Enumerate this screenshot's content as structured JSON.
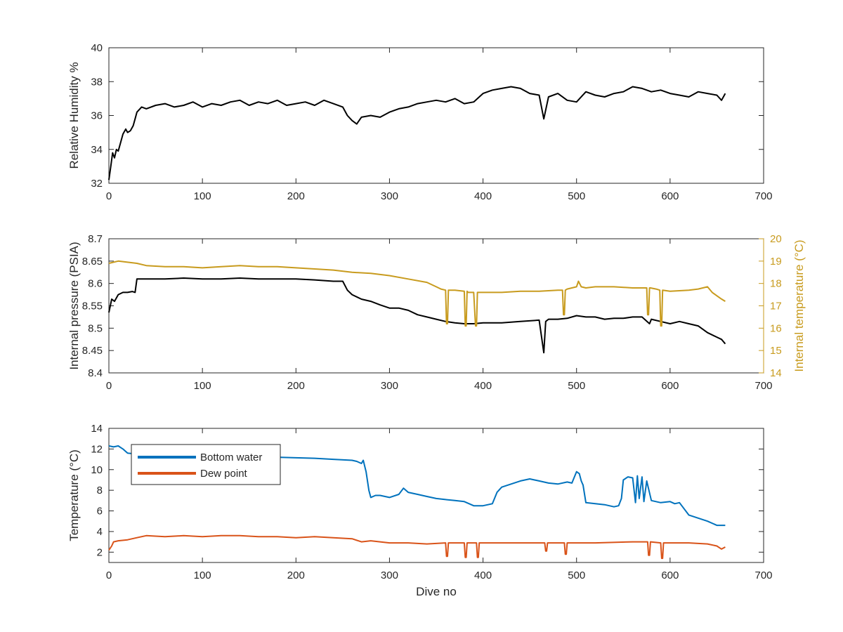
{
  "chart_data": [
    {
      "type": "line",
      "ylabel": "Relative Humidity %",
      "xlabel": "",
      "xlim": [
        0,
        700
      ],
      "ylim": [
        32,
        40
      ],
      "xticks": [
        "0",
        "100",
        "200",
        "300",
        "400",
        "500",
        "600",
        "700"
      ],
      "yticks": [
        "32",
        "34",
        "36",
        "38",
        "40"
      ],
      "grid": false,
      "series": [
        {
          "color": "#000000",
          "x": [
            0,
            2,
            4,
            6,
            8,
            10,
            12,
            15,
            18,
            20,
            23,
            26,
            28,
            30,
            35,
            40,
            50,
            60,
            70,
            80,
            90,
            100,
            110,
            120,
            130,
            140,
            150,
            160,
            170,
            180,
            190,
            200,
            210,
            220,
            230,
            240,
            250,
            255,
            260,
            265,
            270,
            280,
            290,
            300,
            310,
            320,
            330,
            340,
            350,
            360,
            370,
            380,
            390,
            400,
            410,
            420,
            430,
            440,
            450,
            460,
            465,
            470,
            480,
            490,
            500,
            510,
            520,
            530,
            540,
            550,
            560,
            570,
            580,
            590,
            600,
            610,
            620,
            630,
            640,
            650,
            655,
            659
          ],
          "y": [
            32.2,
            33.0,
            33.8,
            33.5,
            34.0,
            33.9,
            34.3,
            34.9,
            35.2,
            35.0,
            35.1,
            35.4,
            35.8,
            36.2,
            36.5,
            36.4,
            36.6,
            36.7,
            36.5,
            36.6,
            36.8,
            36.5,
            36.7,
            36.6,
            36.8,
            36.9,
            36.6,
            36.8,
            36.7,
            36.9,
            36.6,
            36.7,
            36.8,
            36.6,
            36.9,
            36.7,
            36.5,
            36.0,
            35.7,
            35.5,
            35.9,
            36.0,
            35.9,
            36.2,
            36.4,
            36.5,
            36.7,
            36.8,
            36.9,
            36.8,
            37.0,
            36.7,
            36.8,
            37.3,
            37.5,
            37.6,
            37.7,
            37.6,
            37.3,
            37.2,
            35.8,
            37.1,
            37.3,
            36.9,
            36.8,
            37.4,
            37.2,
            37.1,
            37.3,
            37.4,
            37.7,
            37.6,
            37.4,
            37.5,
            37.3,
            37.2,
            37.1,
            37.4,
            37.3,
            37.2,
            36.9,
            37.3
          ]
        }
      ]
    },
    {
      "type": "line",
      "ylabel": "Internal pressure (PSIA)",
      "y2label": "Internal temperature (°C)",
      "xlabel": "",
      "xlim": [
        0,
        700
      ],
      "ylim": [
        8.4,
        8.7
      ],
      "y2lim": [
        14,
        20
      ],
      "xticks": [
        "0",
        "100",
        "200",
        "300",
        "400",
        "500",
        "600",
        "700"
      ],
      "yticks": [
        "8.4",
        "8.45",
        "8.5",
        "8.55",
        "8.6",
        "8.65",
        "8.7"
      ],
      "y2ticks": [
        "14",
        "15",
        "16",
        "17",
        "18",
        "19",
        "20"
      ],
      "grid": false,
      "series": [
        {
          "axis": "left",
          "color": "#000000",
          "x": [
            0,
            3,
            6,
            10,
            15,
            20,
            25,
            28,
            30,
            40,
            60,
            80,
            100,
            120,
            140,
            160,
            180,
            200,
            220,
            240,
            250,
            255,
            260,
            270,
            280,
            290,
            300,
            310,
            320,
            330,
            340,
            350,
            360,
            370,
            380,
            390,
            400,
            420,
            440,
            460,
            465,
            467,
            470,
            480,
            490,
            500,
            510,
            520,
            530,
            540,
            550,
            560,
            570,
            578,
            580,
            590,
            600,
            610,
            620,
            630,
            640,
            650,
            655,
            659
          ],
          "y": [
            8.535,
            8.565,
            8.56,
            8.575,
            8.58,
            8.58,
            8.582,
            8.58,
            8.61,
            8.61,
            8.61,
            8.612,
            8.61,
            8.61,
            8.612,
            8.61,
            8.61,
            8.61,
            8.608,
            8.605,
            8.605,
            8.585,
            8.575,
            8.565,
            8.56,
            8.552,
            8.545,
            8.545,
            8.54,
            8.53,
            8.525,
            8.52,
            8.515,
            8.512,
            8.51,
            8.51,
            8.512,
            8.512,
            8.515,
            8.518,
            8.445,
            8.515,
            8.52,
            8.52,
            8.522,
            8.528,
            8.525,
            8.525,
            8.52,
            8.522,
            8.522,
            8.525,
            8.525,
            8.51,
            8.52,
            8.515,
            8.51,
            8.515,
            8.51,
            8.505,
            8.49,
            8.48,
            8.475,
            8.465
          ]
        },
        {
          "axis": "right",
          "color": "#c89b1e",
          "x": [
            0,
            10,
            20,
            30,
            40,
            60,
            80,
            100,
            120,
            140,
            160,
            180,
            200,
            220,
            240,
            260,
            280,
            300,
            320,
            340,
            350,
            355,
            360,
            361,
            362,
            363,
            364,
            370,
            380,
            381,
            382,
            383,
            384,
            390,
            392,
            393,
            394,
            395,
            400,
            420,
            440,
            460,
            480,
            485,
            486,
            487,
            488,
            490,
            500,
            502,
            505,
            510,
            520,
            540,
            560,
            575,
            576,
            577,
            578,
            579,
            585,
            589,
            590,
            591,
            592,
            600,
            620,
            630,
            640,
            645,
            650,
            655,
            659
          ],
          "y": [
            18.9,
            19.0,
            18.95,
            18.9,
            18.8,
            18.75,
            18.75,
            18.7,
            18.75,
            18.8,
            18.75,
            18.75,
            18.7,
            18.65,
            18.6,
            18.5,
            18.45,
            18.35,
            18.2,
            18.05,
            17.85,
            17.75,
            17.7,
            16.2,
            16.2,
            17.7,
            17.7,
            17.7,
            17.65,
            16.1,
            16.1,
            17.65,
            17.6,
            17.6,
            16.1,
            16.1,
            17.6,
            17.6,
            17.6,
            17.6,
            17.65,
            17.65,
            17.7,
            17.7,
            16.6,
            16.6,
            17.7,
            17.75,
            17.85,
            18.1,
            17.85,
            17.8,
            17.85,
            17.85,
            17.8,
            17.8,
            16.6,
            16.6,
            17.8,
            17.8,
            17.75,
            17.7,
            16.1,
            16.1,
            17.7,
            17.65,
            17.7,
            17.75,
            17.85,
            17.6,
            17.45,
            17.3,
            17.2
          ]
        }
      ]
    },
    {
      "type": "line",
      "ylabel": "Temperature (°C)",
      "xlabel": "Dive no",
      "xlim": [
        0,
        700
      ],
      "ylim": [
        1,
        14
      ],
      "xticks": [
        "0",
        "100",
        "200",
        "300",
        "400",
        "500",
        "600",
        "700"
      ],
      "yticks": [
        "2",
        "4",
        "6",
        "8",
        "10",
        "12",
        "14"
      ],
      "grid": false,
      "legend": {
        "position": "top-left",
        "entries": [
          "Bottom water",
          "Dew point"
        ]
      },
      "series": [
        {
          "name": "Bottom water",
          "color": "#0072bd",
          "x": [
            0,
            5,
            10,
            15,
            20,
            30,
            40,
            60,
            80,
            100,
            120,
            140,
            160,
            180,
            200,
            220,
            240,
            260,
            265,
            270,
            272,
            275,
            278,
            280,
            285,
            290,
            300,
            310,
            315,
            320,
            330,
            340,
            350,
            360,
            370,
            380,
            390,
            400,
            410,
            415,
            420,
            430,
            440,
            450,
            460,
            470,
            480,
            490,
            495,
            500,
            503,
            505,
            507,
            510,
            520,
            530,
            540,
            545,
            548,
            550,
            555,
            560,
            563,
            565,
            567,
            570,
            572,
            575,
            580,
            590,
            600,
            605,
            610,
            620,
            630,
            640,
            650,
            659
          ],
          "y": [
            12.3,
            12.2,
            12.3,
            12.0,
            11.6,
            11.5,
            11.4,
            11.35,
            11.3,
            11.3,
            11.25,
            11.3,
            11.2,
            11.2,
            11.15,
            11.1,
            11.0,
            10.9,
            10.8,
            10.6,
            10.9,
            9.8,
            8.0,
            7.3,
            7.5,
            7.5,
            7.3,
            7.6,
            8.2,
            7.8,
            7.6,
            7.4,
            7.2,
            7.1,
            7.0,
            6.9,
            6.5,
            6.5,
            6.7,
            7.8,
            8.3,
            8.6,
            8.9,
            9.1,
            8.9,
            8.7,
            8.6,
            8.8,
            8.7,
            9.8,
            9.6,
            8.9,
            8.5,
            6.8,
            6.7,
            6.6,
            6.4,
            6.5,
            7.2,
            9.0,
            9.3,
            9.2,
            6.8,
            9.4,
            7.2,
            9.3,
            6.9,
            8.9,
            7.0,
            6.8,
            6.9,
            6.7,
            6.8,
            5.6,
            5.3,
            5.0,
            4.6,
            4.6
          ]
        },
        {
          "name": "Dew point",
          "color": "#d95319",
          "x": [
            0,
            3,
            5,
            10,
            20,
            30,
            40,
            60,
            80,
            100,
            120,
            140,
            160,
            180,
            200,
            220,
            240,
            260,
            270,
            280,
            300,
            320,
            340,
            360,
            361,
            362,
            363,
            380,
            381,
            382,
            383,
            393,
            394,
            395,
            396,
            420,
            440,
            466,
            467,
            468,
            469,
            487,
            488,
            489,
            490,
            520,
            560,
            576,
            577,
            578,
            579,
            590,
            591,
            592,
            593,
            620,
            640,
            650,
            655,
            659
          ],
          "y": [
            2.2,
            2.6,
            3.0,
            3.1,
            3.2,
            3.4,
            3.6,
            3.5,
            3.6,
            3.5,
            3.6,
            3.6,
            3.5,
            3.5,
            3.4,
            3.5,
            3.4,
            3.3,
            3.0,
            3.1,
            2.9,
            2.9,
            2.8,
            2.9,
            1.6,
            1.6,
            2.9,
            2.9,
            1.5,
            1.5,
            2.9,
            2.9,
            1.5,
            1.5,
            2.9,
            2.9,
            2.9,
            2.9,
            2.1,
            2.1,
            2.9,
            2.9,
            1.8,
            1.8,
            2.9,
            2.9,
            3.0,
            3.0,
            1.7,
            1.7,
            3.0,
            2.9,
            1.4,
            1.4,
            2.9,
            2.9,
            2.8,
            2.6,
            2.3,
            2.5
          ]
        }
      ]
    }
  ]
}
